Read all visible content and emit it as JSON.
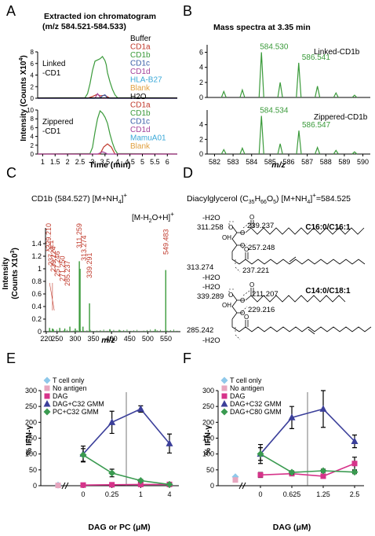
{
  "panel_letters": [
    "A",
    "B",
    "C",
    "D",
    "E",
    "F"
  ],
  "chart_data": [
    {
      "panel": "A",
      "type": "line",
      "title": "Extracted ion chromatogram",
      "subtitle": "(m/z 584.521-584.533)",
      "ylabel": "Intensity (Counts X10",
      "ylabel_sup": "4",
      "ylabel_end": ")",
      "xlabel": "Time (min)",
      "xlim": [
        0.8,
        6.4
      ],
      "xticks": [
        "1",
        "1.5",
        "2",
        "2.5",
        "3",
        "3.5",
        "4",
        "4.5",
        "5",
        "5.5",
        "6"
      ],
      "subplots": [
        {
          "label_lines": [
            "Linked",
            "-CD1"
          ],
          "ylim": [
            0,
            8
          ],
          "yticks": [
            "0",
            "2",
            "4",
            "6",
            "8"
          ],
          "legend": [
            {
              "name": "Buffer",
              "color": "#000000"
            },
            {
              "name": "CD1a",
              "color": "#c0392b"
            },
            {
              "name": "CD1b",
              "color": "#3a9a3a"
            },
            {
              "name": "CD1c",
              "color": "#3a5fa8"
            },
            {
              "name": "CD1d",
              "color": "#a4419a"
            },
            {
              "name": "HLA-B27",
              "color": "#3aa8d8"
            },
            {
              "name": "Blank",
              "color": "#e0a040"
            }
          ],
          "series": [
            {
              "name": "CD1b",
              "color": "#3a9a3a",
              "x": [
                0.8,
                2.7,
                2.8,
                2.9,
                3.0,
                3.1,
                3.2,
                3.3,
                3.4,
                3.5,
                3.55,
                3.6,
                3.7,
                3.8,
                3.9,
                4.0,
                6.4
              ],
              "y": [
                0.05,
                0.1,
                0.8,
                2.5,
                4.8,
                6.4,
                6.6,
                6.8,
                7.2,
                6.5,
                5.8,
                4.4,
                2.8,
                1.5,
                0.6,
                0.1,
                0.05
              ]
            },
            {
              "name": "CD1a",
              "color": "#c0392b",
              "x": [
                0.8,
                2.8,
                3.0,
                3.2,
                3.3,
                3.5,
                3.7,
                6.4
              ],
              "y": [
                0,
                0,
                0.3,
                0.7,
                0.4,
                0.5,
                0,
                0
              ]
            },
            {
              "name": "CD1d",
              "color": "#a4419a",
              "x": [
                0.8,
                3.1,
                3.2,
                3.3,
                3.4,
                6.4
              ],
              "y": [
                0,
                0,
                0.8,
                0.2,
                0,
                0
              ]
            },
            {
              "name": "CD1c",
              "color": "#3a5fa8",
              "x": [
                0.8,
                3.3,
                3.4,
                3.5,
                3.6,
                6.4
              ],
              "y": [
                0,
                0,
                0.4,
                0.6,
                0,
                0
              ]
            },
            {
              "name": "Buffer",
              "color": "#000000",
              "x": [
                0.8,
                6.4
              ],
              "y": [
                0.05,
                0.05
              ]
            }
          ]
        },
        {
          "label_lines": [
            "Zippered",
            "-CD1"
          ],
          "ylim": [
            0,
            10
          ],
          "yticks": [
            "0",
            "2",
            "4",
            "6",
            "8",
            "10"
          ],
          "legend": [
            {
              "name": "H2O",
              "color": "#000000"
            },
            {
              "name": "CD1a",
              "color": "#c0392b"
            },
            {
              "name": "CD1b",
              "color": "#3a9a3a"
            },
            {
              "name": "CD1c",
              "color": "#3a5fa8"
            },
            {
              "name": "CD1d",
              "color": "#a4419a"
            },
            {
              "name": "MamuA01",
              "color": "#3aa8d8"
            },
            {
              "name": "Blank",
              "color": "#e0a040"
            }
          ],
          "series": [
            {
              "name": "CD1b",
              "color": "#3a9a3a",
              "x": [
                0.8,
                2.9,
                3.0,
                3.1,
                3.2,
                3.3,
                3.4,
                3.5,
                3.6,
                3.7,
                3.8,
                3.9,
                4.0,
                6.4
              ],
              "y": [
                0,
                0.1,
                1.5,
                5.0,
                8.0,
                9.8,
                9.3,
                8.4,
                7.0,
                4.5,
                2.5,
                1.0,
                0.1,
                0
              ]
            },
            {
              "name": "CD1a",
              "color": "#c0392b",
              "x": [
                0.8,
                3.3,
                3.45,
                3.6,
                3.75,
                3.9,
                6.4
              ],
              "y": [
                0,
                0,
                1.6,
                2.3,
                1.6,
                0,
                0
              ]
            },
            {
              "name": "CD1d",
              "color": "#a4419a",
              "x": [
                0.8,
                3.2,
                3.4,
                3.5,
                3.6,
                6.4
              ],
              "y": [
                0,
                0,
                0.5,
                0.3,
                0,
                0
              ]
            }
          ]
        }
      ]
    },
    {
      "panel": "B",
      "type": "bar",
      "title": "Mass spectra at 3.35 min",
      "xlabel": "m/z",
      "xlim": [
        581.6,
        590.4
      ],
      "xticks": [
        "582",
        "583",
        "584",
        "585",
        "586",
        "587",
        "588",
        "589",
        "590"
      ],
      "subplots": [
        {
          "label": "Linked-CD1b",
          "ylim": [
            0,
            7
          ],
          "yticks": [
            "0",
            "2",
            "4",
            "6"
          ],
          "peaks_x": [
            582.5,
            583.5,
            584.53,
            585.54,
            586.54,
            587.55,
            588.55,
            589.55
          ],
          "peaks_y": [
            0.8,
            1.0,
            6.0,
            2.0,
            4.6,
            1.5,
            0.6,
            0.3
          ],
          "annotations": [
            {
              "text": "584.530",
              "x": 584.53,
              "y": 6.0
            },
            {
              "text": "586.541",
              "x": 586.54,
              "y": 4.6
            }
          ]
        },
        {
          "label": "Zippered-CD1b",
          "ylim": [
            0,
            6
          ],
          "yticks": [
            "0",
            "2",
            "4"
          ],
          "peaks_x": [
            582.5,
            583.5,
            584.53,
            585.54,
            586.55,
            587.55,
            588.55,
            589.55
          ],
          "peaks_y": [
            0.6,
            0.8,
            5.2,
            1.4,
            3.2,
            0.9,
            0.5,
            0.3
          ],
          "annotations": [
            {
              "text": "584.534",
              "x": 584.53,
              "y": 5.2
            },
            {
              "text": "586.547",
              "x": 586.55,
              "y": 3.2
            }
          ]
        }
      ]
    },
    {
      "panel": "C",
      "type": "bar",
      "title": "CD1b (584.527) [M+NH",
      "title_sub": "4",
      "title_end": "]",
      "title_sup": "+",
      "ylabel_lines": [
        "Intensity",
        "(Counts X10"
      ],
      "ylabel_sup": "3",
      "ylabel_end": ")",
      "xlabel": "m/z",
      "xlim": [
        218,
        590
      ],
      "ylim": [
        0,
        1.65
      ],
      "yticks": [
        "0",
        "0.2",
        "0.4",
        "0.6",
        "0.8",
        "1",
        "1.2",
        "1.4"
      ],
      "xticks": [
        "220",
        "250",
        "300",
        "350",
        "400",
        "450",
        "500",
        "550"
      ],
      "peaks_x": [
        229.21,
        237.22,
        239.24,
        257.25,
        271.2,
        285.24,
        300.1,
        311.26,
        313.27,
        321.3,
        339.29,
        395.3,
        421.3,
        520.5,
        549.48
      ],
      "peaks_y": [
        0.06,
        0.05,
        0.04,
        0.06,
        0.05,
        0.08,
        0.05,
        1.12,
        1.0,
        0.08,
        0.45,
        0.04,
        0.03,
        0.04,
        0.98
      ],
      "peak_labels": [
        "*229.210",
        "237.221",
        "239.224",
        "257.246",
        "271.250",
        "285.237",
        "311.259",
        "313.274",
        "339.291",
        "549.483"
      ],
      "annotation": "[M-H",
      "annotation_sub": "2",
      "annotation_end": "O+H]",
      "annotation_sup": "+"
    },
    {
      "panel": "E",
      "type": "line",
      "ylabel": "% IFN-γ",
      "xlabel": "DAG or PC (μM)",
      "categories": [
        "0",
        "0.25",
        "1",
        "4"
      ],
      "ylim": [
        0,
        300
      ],
      "yticks": [
        "0",
        "50",
        "100",
        "150",
        "200",
        "250",
        "300"
      ],
      "legend": [
        "T cell only",
        "No antigen",
        "DAG",
        "DAG+C32 GMM",
        "PC+C32 GMM"
      ],
      "controls": [
        {
          "name": "T cell only",
          "value": 2,
          "color": "#8ec8ea",
          "marker": "diamond"
        },
        {
          "name": "No antigen",
          "value": 1,
          "color": "#e7a6bf",
          "marker": "square"
        }
      ],
      "series": [
        {
          "name": "DAG",
          "color": "#d6338a",
          "marker": "square",
          "values": [
            2,
            3,
            4,
            4
          ]
        },
        {
          "name": "DAG+C32 GMM",
          "color": "#3b3f9a",
          "marker": "triangle",
          "values": [
            100,
            200,
            242,
            133
          ],
          "err": [
            25,
            35,
            10,
            30
          ]
        },
        {
          "name": "PC+C32 GMM",
          "color": "#3a9a50",
          "marker": "diamond",
          "values": [
            97,
            40,
            16,
            4
          ],
          "err": [
            20,
            12,
            4,
            2
          ]
        }
      ]
    },
    {
      "panel": "F",
      "type": "line",
      "ylabel": "% IFN-γ",
      "xlabel": "DAG (μM)",
      "categories": [
        "0",
        "0.625",
        "1.25",
        "2.5"
      ],
      "ylim": [
        0,
        300
      ],
      "yticks": [
        "0",
        "50",
        "100",
        "150",
        "200",
        "250",
        "300"
      ],
      "legend": [
        "T cell only",
        "No antigen",
        "DAG",
        "DAG+C32 GMM",
        "DAG+C80 GMM"
      ],
      "controls": [
        {
          "name": "T cell only",
          "value": 28,
          "color": "#8ec8ea",
          "marker": "diamond"
        },
        {
          "name": "No antigen",
          "value": 18,
          "color": "#e7a6bf",
          "marker": "square"
        }
      ],
      "series": [
        {
          "name": "DAG",
          "color": "#d6338a",
          "marker": "square",
          "values": [
            34,
            38,
            30,
            70
          ],
          "err": [
            8,
            6,
            6,
            20
          ]
        },
        {
          "name": "DAG+C32 GMM",
          "color": "#3b3f9a",
          "marker": "triangle",
          "values": [
            100,
            215,
            242,
            140
          ],
          "err": [
            30,
            35,
            58,
            20
          ]
        },
        {
          "name": "DAG+C80 GMM",
          "color": "#3a9a50",
          "marker": "diamond",
          "values": [
            100,
            42,
            47,
            43
          ],
          "err": [
            20,
            5,
            5,
            5
          ]
        }
      ]
    }
  ],
  "diagram_D": {
    "title": "Diacylglycerol (C",
    "title_sub1": "35",
    "title_mid1": "H",
    "title_sub2": "66",
    "title_mid2": "O",
    "title_sub3": "5",
    "title_end": ") [M+NH",
    "title_sub4": "4",
    "title_end2": "]",
    "title_sup": "+",
    "title_value": "=584.525",
    "structures": [
      {
        "name": "C16:0/C16:1",
        "fragments": [
          {
            "text": "-H2O"
          },
          {
            "text": "311.258"
          },
          {
            "text": "239.237"
          },
          {
            "text": "257.248"
          },
          {
            "text": "313.274"
          },
          {
            "text": "237.221"
          },
          {
            "text": "-H2O"
          }
        ]
      },
      {
        "name": "C14:0/C18:1",
        "fragments": [
          {
            "text": "-H2O"
          },
          {
            "text": "339.289"
          },
          {
            "text": "211.207"
          },
          {
            "text": "229.216"
          },
          {
            "text": "285.242"
          },
          {
            "text": "-H2O"
          }
        ]
      }
    ]
  }
}
